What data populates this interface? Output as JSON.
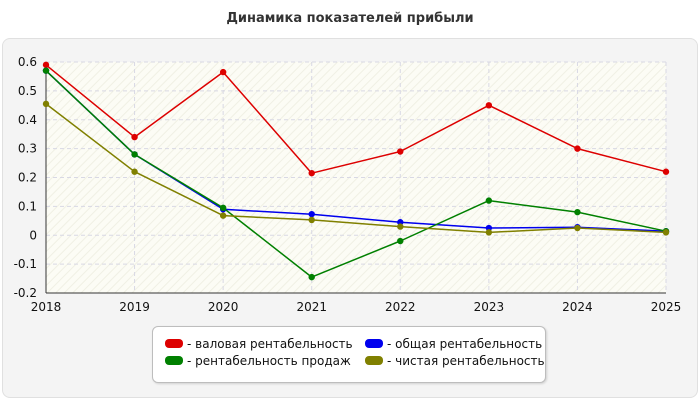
{
  "chart_data": {
    "type": "line",
    "title": "Динамика показателей прибыли",
    "xlabel": "",
    "ylabel": "",
    "categories": [
      "2018",
      "2019",
      "2020",
      "2021",
      "2022",
      "2023",
      "2024",
      "2025"
    ],
    "ylim": [
      -0.2,
      0.6
    ],
    "yticks": [
      "0.6",
      "0.5",
      "0.4",
      "0.3",
      "0.2",
      "0.1",
      "0",
      "-0.1",
      "-0.2"
    ],
    "grid": true,
    "legend_position": "bottom",
    "series": [
      {
        "name": "валовая рентабельность",
        "color": "#dd0000",
        "values": [
          0.59,
          0.34,
          0.565,
          0.215,
          0.29,
          0.45,
          0.3,
          0.22
        ]
      },
      {
        "name": "общая рентабельность",
        "color": "#0000ee",
        "values": [
          0.57,
          0.28,
          0.09,
          0.073,
          0.045,
          0.025,
          0.028,
          0.014
        ]
      },
      {
        "name": "рентабельность продаж",
        "color": "#008000",
        "values": [
          0.57,
          0.28,
          0.095,
          -0.145,
          -0.02,
          0.12,
          0.08,
          0.014
        ]
      },
      {
        "name": "чистая рентабельность",
        "color": "#808000",
        "values": [
          0.455,
          0.22,
          0.068,
          0.053,
          0.03,
          0.01,
          0.025,
          0.01
        ]
      }
    ]
  }
}
